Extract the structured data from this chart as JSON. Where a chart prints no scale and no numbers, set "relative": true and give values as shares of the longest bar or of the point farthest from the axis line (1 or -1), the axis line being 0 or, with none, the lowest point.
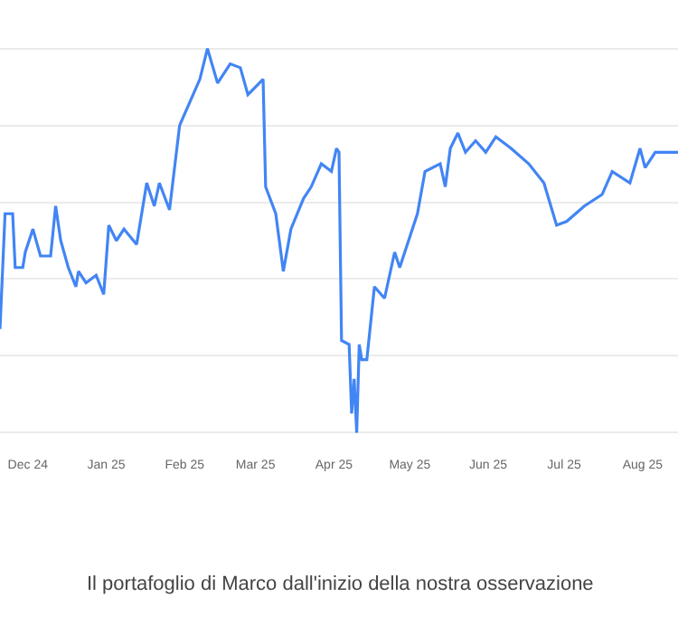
{
  "chart_data": {
    "type": "line",
    "relative": true,
    "grid": "y",
    "xlim": [
      "2024-11-20",
      "2025-08-15"
    ],
    "xticks": [
      {
        "value": "2024-12-01",
        "label": "Dec 24"
      },
      {
        "value": "2025-01-01",
        "label": "Jan 25"
      },
      {
        "value": "2025-02-01",
        "label": "Feb 25"
      },
      {
        "value": "2025-03-01",
        "label": "Mar 25"
      },
      {
        "value": "2025-04-01",
        "label": "Apr 25"
      },
      {
        "value": "2025-05-01",
        "label": "May 25"
      },
      {
        "value": "2025-06-01",
        "label": "Jun 25"
      },
      {
        "value": "2025-07-01",
        "label": "Jul 25"
      },
      {
        "value": "2025-08-01",
        "label": "Aug 25"
      }
    ],
    "annotations": [
      "Il portafoglio di Marco dall'inizio della nostra osservazione"
    ],
    "series": [
      {
        "color": "#4285f4",
        "x": [
          "2024-11-20",
          "2024-11-22",
          "2024-11-25",
          "2024-11-26",
          "2024-11-29",
          "2024-11-30",
          "2024-12-03",
          "2024-12-06",
          "2024-12-10",
          "2024-12-12",
          "2024-12-14",
          "2024-12-17",
          "2024-12-20",
          "2024-12-21",
          "2024-12-24",
          "2024-12-28",
          "2024-12-31",
          "2025-01-02",
          "2025-01-05",
          "2025-01-08",
          "2025-01-13",
          "2025-01-17",
          "2025-01-20",
          "2025-01-22",
          "2025-01-26",
          "2025-01-30",
          "2025-02-03",
          "2025-02-07",
          "2025-02-10",
          "2025-02-14",
          "2025-02-19",
          "2025-02-23",
          "2025-02-26",
          "2025-03-04",
          "2025-03-05",
          "2025-03-09",
          "2025-03-12",
          "2025-03-15",
          "2025-03-20",
          "2025-03-23",
          "2025-03-27",
          "2025-03-31",
          "2025-04-02",
          "2025-04-03",
          "2025-04-04",
          "2025-04-07",
          "2025-04-08",
          "2025-04-09",
          "2025-04-10",
          "2025-04-11",
          "2025-04-12",
          "2025-04-14",
          "2025-04-17",
          "2025-04-21",
          "2025-04-25",
          "2025-04-27",
          "2025-05-02",
          "2025-05-04",
          "2025-05-07",
          "2025-05-13",
          "2025-05-15",
          "2025-05-17",
          "2025-05-20",
          "2025-05-23",
          "2025-05-27",
          "2025-05-31",
          "2025-06-04",
          "2025-06-10",
          "2025-06-17",
          "2025-06-23",
          "2025-06-28",
          "2025-07-02",
          "2025-07-09",
          "2025-07-16",
          "2025-07-20",
          "2025-07-27",
          "2025-07-31",
          "2025-08-02",
          "2025-08-06",
          "2025-08-15"
        ],
        "values": [
          0.27,
          0.57,
          0.57,
          0.43,
          0.43,
          0.47,
          0.53,
          0.46,
          0.46,
          0.59,
          0.5,
          0.43,
          0.38,
          0.42,
          0.39,
          0.41,
          0.36,
          0.54,
          0.5,
          0.53,
          0.49,
          0.65,
          0.59,
          0.65,
          0.58,
          0.8,
          0.86,
          0.92,
          1,
          0.91,
          0.96,
          0.95,
          0.88,
          0.92,
          0.64,
          0.57,
          0.42,
          0.53,
          0.61,
          0.64,
          0.7,
          0.68,
          0.74,
          0.73,
          0.24,
          0.23,
          0.05,
          0.14,
          0,
          0.23,
          0.19,
          0.19,
          0.38,
          0.35,
          0.47,
          0.43,
          0.53,
          0.57,
          0.68,
          0.7,
          0.64,
          0.74,
          0.78,
          0.73,
          0.76,
          0.73,
          0.77,
          0.74,
          0.7,
          0.65,
          0.54,
          0.55,
          0.59,
          0.62,
          0.68,
          0.65,
          0.74,
          0.69,
          0.73,
          0.73
        ]
      }
    ]
  }
}
